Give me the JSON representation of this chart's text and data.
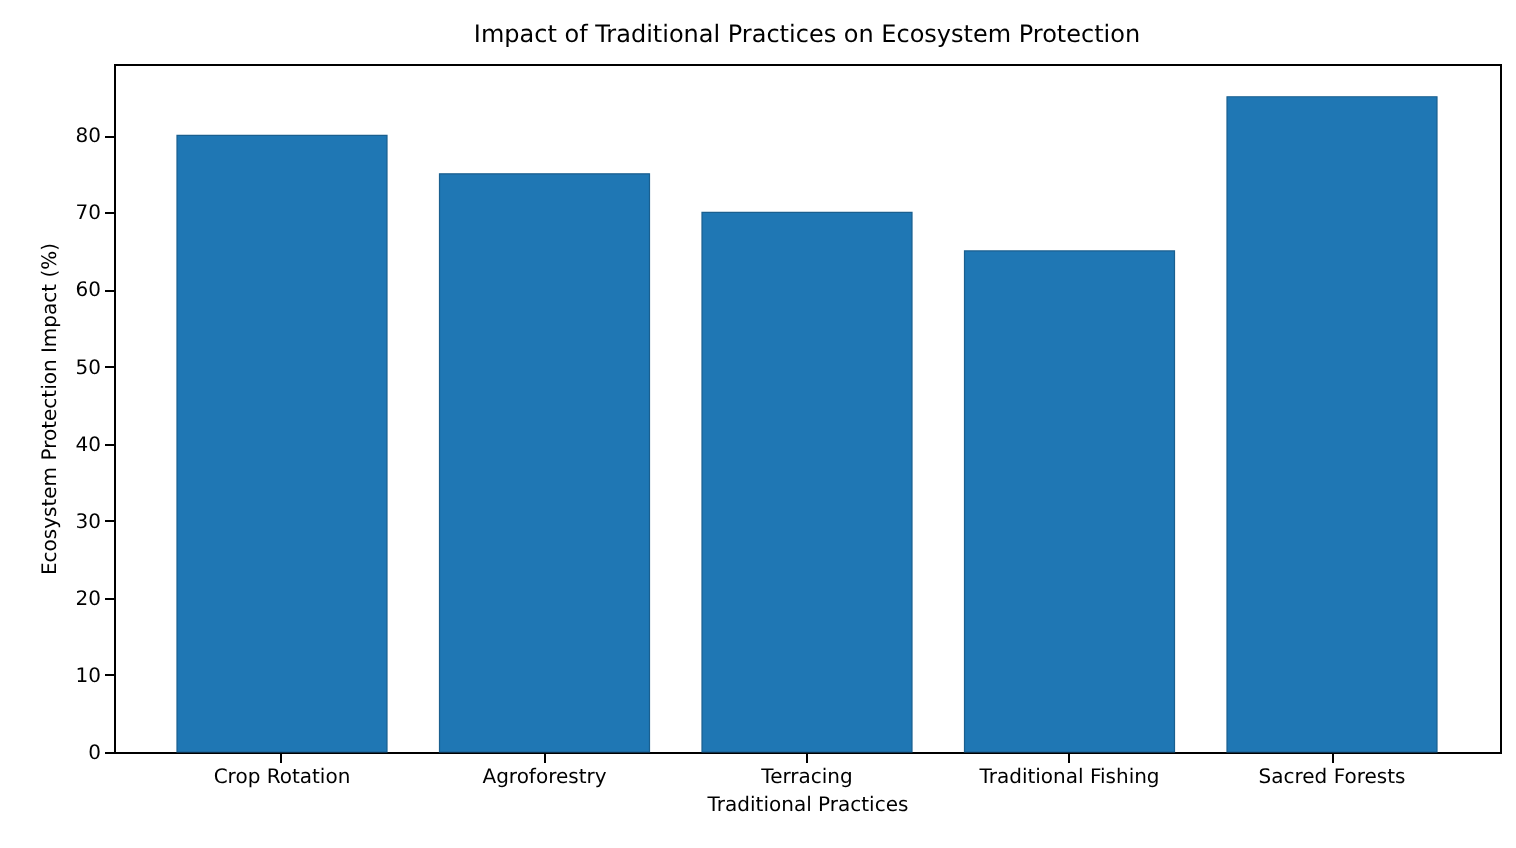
{
  "chart_data": {
    "type": "bar",
    "title": "Impact of Traditional Practices on Ecosystem Protection",
    "xlabel": "Traditional Practices",
    "ylabel": "Ecosystem Protection Impact (%)",
    "categories": [
      "Crop Rotation",
      "Agroforestry",
      "Terracing",
      "Traditional Fishing",
      "Sacred Forests"
    ],
    "values": [
      80,
      75,
      70,
      65,
      85
    ],
    "color": "#1f77b4",
    "ylim": [
      0,
      89.25
    ],
    "yticks": [
      0,
      10,
      20,
      30,
      40,
      50,
      60,
      70,
      80
    ],
    "grid": false
  }
}
